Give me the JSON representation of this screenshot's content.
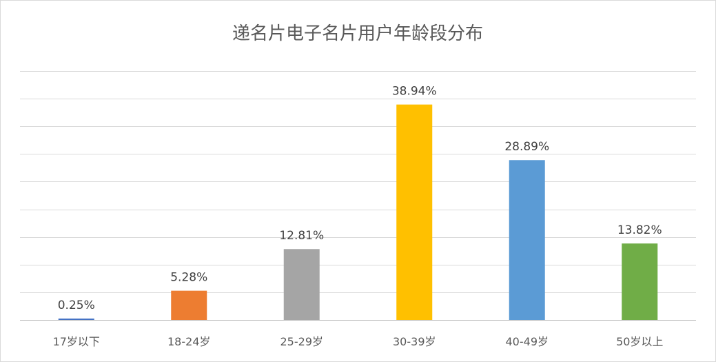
{
  "chart_data": {
    "type": "bar",
    "title": "递名片电子名片用户年龄段分布",
    "categories": [
      "17岁以下",
      "18-24岁",
      "25-29岁",
      "30-39岁",
      "40-49岁",
      "50岁以上"
    ],
    "values": [
      0.25,
      5.28,
      12.81,
      38.94,
      28.89,
      13.82
    ],
    "data_labels": [
      "0.25%",
      "5.28%",
      "12.81%",
      "38.94%",
      "28.89%",
      "13.82%"
    ],
    "colors": [
      "#4472C4",
      "#ED7D31",
      "#A5A5A5",
      "#FFC000",
      "#5B9BD5",
      "#70AD47"
    ],
    "ylim": [
      0,
      45
    ],
    "grid_step": 5,
    "grid": true,
    "legend": "none",
    "xlabel": "",
    "ylabel": ""
  }
}
